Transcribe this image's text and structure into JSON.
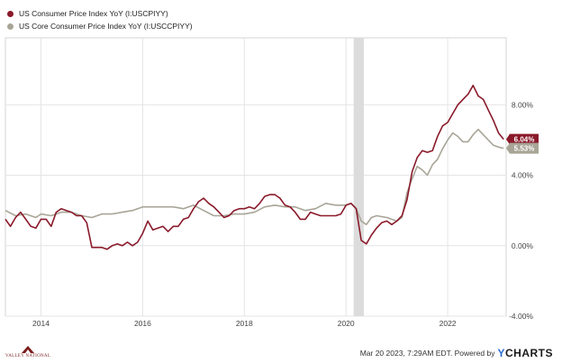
{
  "legend": [
    {
      "label": "US Consumer Price Index YoY (I:USCPIYY)",
      "color": "#8a1a2b"
    },
    {
      "label": "US Core Consumer Price Index YoY (I:USCCPIYY)",
      "color": "#a8a597"
    }
  ],
  "footer": {
    "timestamp": "Mar 20 2023, 7:29AM EDT.  Powered by",
    "brand_y": "Y",
    "brand_rest": "CHARTS"
  },
  "logo_text": "VALLEY NATIONAL",
  "chart_data": {
    "type": "line",
    "x_tick_labels": [
      "2014",
      "2016",
      "2018",
      "2020",
      "2022"
    ],
    "y_tick_labels": [
      "8.00%",
      "4.00%",
      "0.00%",
      "-4.00%"
    ],
    "y_ticks": [
      8,
      4,
      0,
      -4
    ],
    "xlim": [
      2013.3,
      2023.15
    ],
    "ylim": [
      -4.0,
      11.8
    ],
    "recession_shade": [
      2020.15,
      2020.35
    ],
    "end_labels": [
      {
        "series": 0,
        "text": "6.04%",
        "value": 6.04,
        "color": "#8a1a2b"
      },
      {
        "series": 1,
        "text": "5.53%",
        "value": 5.53,
        "color": "#a8a597"
      }
    ],
    "series": [
      {
        "name": "US Consumer Price Index YoY (I:USCPIYY)",
        "color": "#8a1a2b",
        "points": [
          [
            2013.3,
            1.5
          ],
          [
            2013.4,
            1.1
          ],
          [
            2013.5,
            1.6
          ],
          [
            2013.6,
            1.9
          ],
          [
            2013.7,
            1.5
          ],
          [
            2013.8,
            1.1
          ],
          [
            2013.9,
            1.0
          ],
          [
            2014.0,
            1.5
          ],
          [
            2014.1,
            1.5
          ],
          [
            2014.2,
            1.1
          ],
          [
            2014.3,
            1.9
          ],
          [
            2014.4,
            2.1
          ],
          [
            2014.5,
            2.0
          ],
          [
            2014.6,
            1.9
          ],
          [
            2014.7,
            1.7
          ],
          [
            2014.8,
            1.7
          ],
          [
            2014.9,
            1.3
          ],
          [
            2015.0,
            -0.1
          ],
          [
            2015.1,
            -0.1
          ],
          [
            2015.2,
            -0.1
          ],
          [
            2015.3,
            -0.2
          ],
          [
            2015.4,
            0.0
          ],
          [
            2015.5,
            0.1
          ],
          [
            2015.6,
            0.0
          ],
          [
            2015.7,
            0.2
          ],
          [
            2015.8,
            0.0
          ],
          [
            2015.9,
            0.2
          ],
          [
            2016.0,
            0.7
          ],
          [
            2016.1,
            1.4
          ],
          [
            2016.2,
            0.9
          ],
          [
            2016.3,
            1.0
          ],
          [
            2016.4,
            1.1
          ],
          [
            2016.5,
            0.8
          ],
          [
            2016.6,
            1.1
          ],
          [
            2016.7,
            1.1
          ],
          [
            2016.8,
            1.5
          ],
          [
            2016.9,
            1.6
          ],
          [
            2017.0,
            2.1
          ],
          [
            2017.1,
            2.5
          ],
          [
            2017.2,
            2.7
          ],
          [
            2017.3,
            2.4
          ],
          [
            2017.4,
            2.2
          ],
          [
            2017.5,
            1.9
          ],
          [
            2017.6,
            1.6
          ],
          [
            2017.7,
            1.7
          ],
          [
            2017.8,
            2.0
          ],
          [
            2017.9,
            2.1
          ],
          [
            2018.0,
            2.1
          ],
          [
            2018.1,
            2.2
          ],
          [
            2018.2,
            2.1
          ],
          [
            2018.3,
            2.4
          ],
          [
            2018.4,
            2.8
          ],
          [
            2018.5,
            2.9
          ],
          [
            2018.6,
            2.9
          ],
          [
            2018.7,
            2.7
          ],
          [
            2018.8,
            2.3
          ],
          [
            2018.9,
            2.2
          ],
          [
            2019.0,
            1.9
          ],
          [
            2019.1,
            1.5
          ],
          [
            2019.2,
            1.5
          ],
          [
            2019.3,
            1.9
          ],
          [
            2019.4,
            1.8
          ],
          [
            2019.5,
            1.7
          ],
          [
            2019.6,
            1.7
          ],
          [
            2019.7,
            1.7
          ],
          [
            2019.8,
            1.7
          ],
          [
            2019.9,
            1.8
          ],
          [
            2020.0,
            2.3
          ],
          [
            2020.1,
            2.4
          ],
          [
            2020.2,
            2.1
          ],
          [
            2020.3,
            0.3
          ],
          [
            2020.4,
            0.1
          ],
          [
            2020.5,
            0.6
          ],
          [
            2020.6,
            1.0
          ],
          [
            2020.7,
            1.3
          ],
          [
            2020.8,
            1.4
          ],
          [
            2020.9,
            1.2
          ],
          [
            2021.0,
            1.4
          ],
          [
            2021.1,
            1.7
          ],
          [
            2021.2,
            2.6
          ],
          [
            2021.3,
            4.2
          ],
          [
            2021.4,
            5.0
          ],
          [
            2021.5,
            5.4
          ],
          [
            2021.6,
            5.3
          ],
          [
            2021.7,
            5.4
          ],
          [
            2021.8,
            6.2
          ],
          [
            2021.9,
            6.8
          ],
          [
            2022.0,
            7.0
          ],
          [
            2022.1,
            7.5
          ],
          [
            2022.2,
            8.0
          ],
          [
            2022.3,
            8.3
          ],
          [
            2022.4,
            8.6
          ],
          [
            2022.5,
            9.1
          ],
          [
            2022.6,
            8.5
          ],
          [
            2022.7,
            8.3
          ],
          [
            2022.8,
            7.7
          ],
          [
            2022.9,
            7.1
          ],
          [
            2023.0,
            6.4
          ],
          [
            2023.1,
            6.04
          ]
        ]
      },
      {
        "name": "US Core Consumer Price Index YoY (I:USCCPIYY)",
        "color": "#a8a597",
        "points": [
          [
            2013.3,
            2.0
          ],
          [
            2013.5,
            1.7
          ],
          [
            2013.7,
            1.8
          ],
          [
            2013.9,
            1.6
          ],
          [
            2014.0,
            1.8
          ],
          [
            2014.2,
            1.7
          ],
          [
            2014.4,
            1.9
          ],
          [
            2014.6,
            1.9
          ],
          [
            2014.8,
            1.7
          ],
          [
            2015.0,
            1.6
          ],
          [
            2015.2,
            1.8
          ],
          [
            2015.4,
            1.8
          ],
          [
            2015.6,
            1.9
          ],
          [
            2015.8,
            2.0
          ],
          [
            2016.0,
            2.2
          ],
          [
            2016.2,
            2.2
          ],
          [
            2016.4,
            2.2
          ],
          [
            2016.6,
            2.2
          ],
          [
            2016.8,
            2.1
          ],
          [
            2017.0,
            2.3
          ],
          [
            2017.2,
            2.0
          ],
          [
            2017.4,
            1.7
          ],
          [
            2017.6,
            1.7
          ],
          [
            2017.8,
            1.8
          ],
          [
            2018.0,
            1.8
          ],
          [
            2018.2,
            1.9
          ],
          [
            2018.4,
            2.2
          ],
          [
            2018.6,
            2.3
          ],
          [
            2018.8,
            2.2
          ],
          [
            2019.0,
            2.2
          ],
          [
            2019.2,
            2.0
          ],
          [
            2019.4,
            2.1
          ],
          [
            2019.6,
            2.4
          ],
          [
            2019.8,
            2.3
          ],
          [
            2020.0,
            2.3
          ],
          [
            2020.1,
            2.4
          ],
          [
            2020.2,
            2.1
          ],
          [
            2020.3,
            1.4
          ],
          [
            2020.4,
            1.2
          ],
          [
            2020.5,
            1.6
          ],
          [
            2020.6,
            1.7
          ],
          [
            2020.8,
            1.6
          ],
          [
            2021.0,
            1.4
          ],
          [
            2021.1,
            1.6
          ],
          [
            2021.2,
            3.0
          ],
          [
            2021.3,
            3.8
          ],
          [
            2021.4,
            4.5
          ],
          [
            2021.5,
            4.3
          ],
          [
            2021.6,
            4.0
          ],
          [
            2021.7,
            4.6
          ],
          [
            2021.8,
            4.9
          ],
          [
            2021.9,
            5.5
          ],
          [
            2022.0,
            6.0
          ],
          [
            2022.1,
            6.4
          ],
          [
            2022.2,
            6.2
          ],
          [
            2022.3,
            5.9
          ],
          [
            2022.4,
            5.9
          ],
          [
            2022.5,
            6.3
          ],
          [
            2022.6,
            6.6
          ],
          [
            2022.7,
            6.3
          ],
          [
            2022.8,
            6.0
          ],
          [
            2022.9,
            5.7
          ],
          [
            2023.0,
            5.6
          ],
          [
            2023.1,
            5.53
          ]
        ]
      }
    ]
  }
}
